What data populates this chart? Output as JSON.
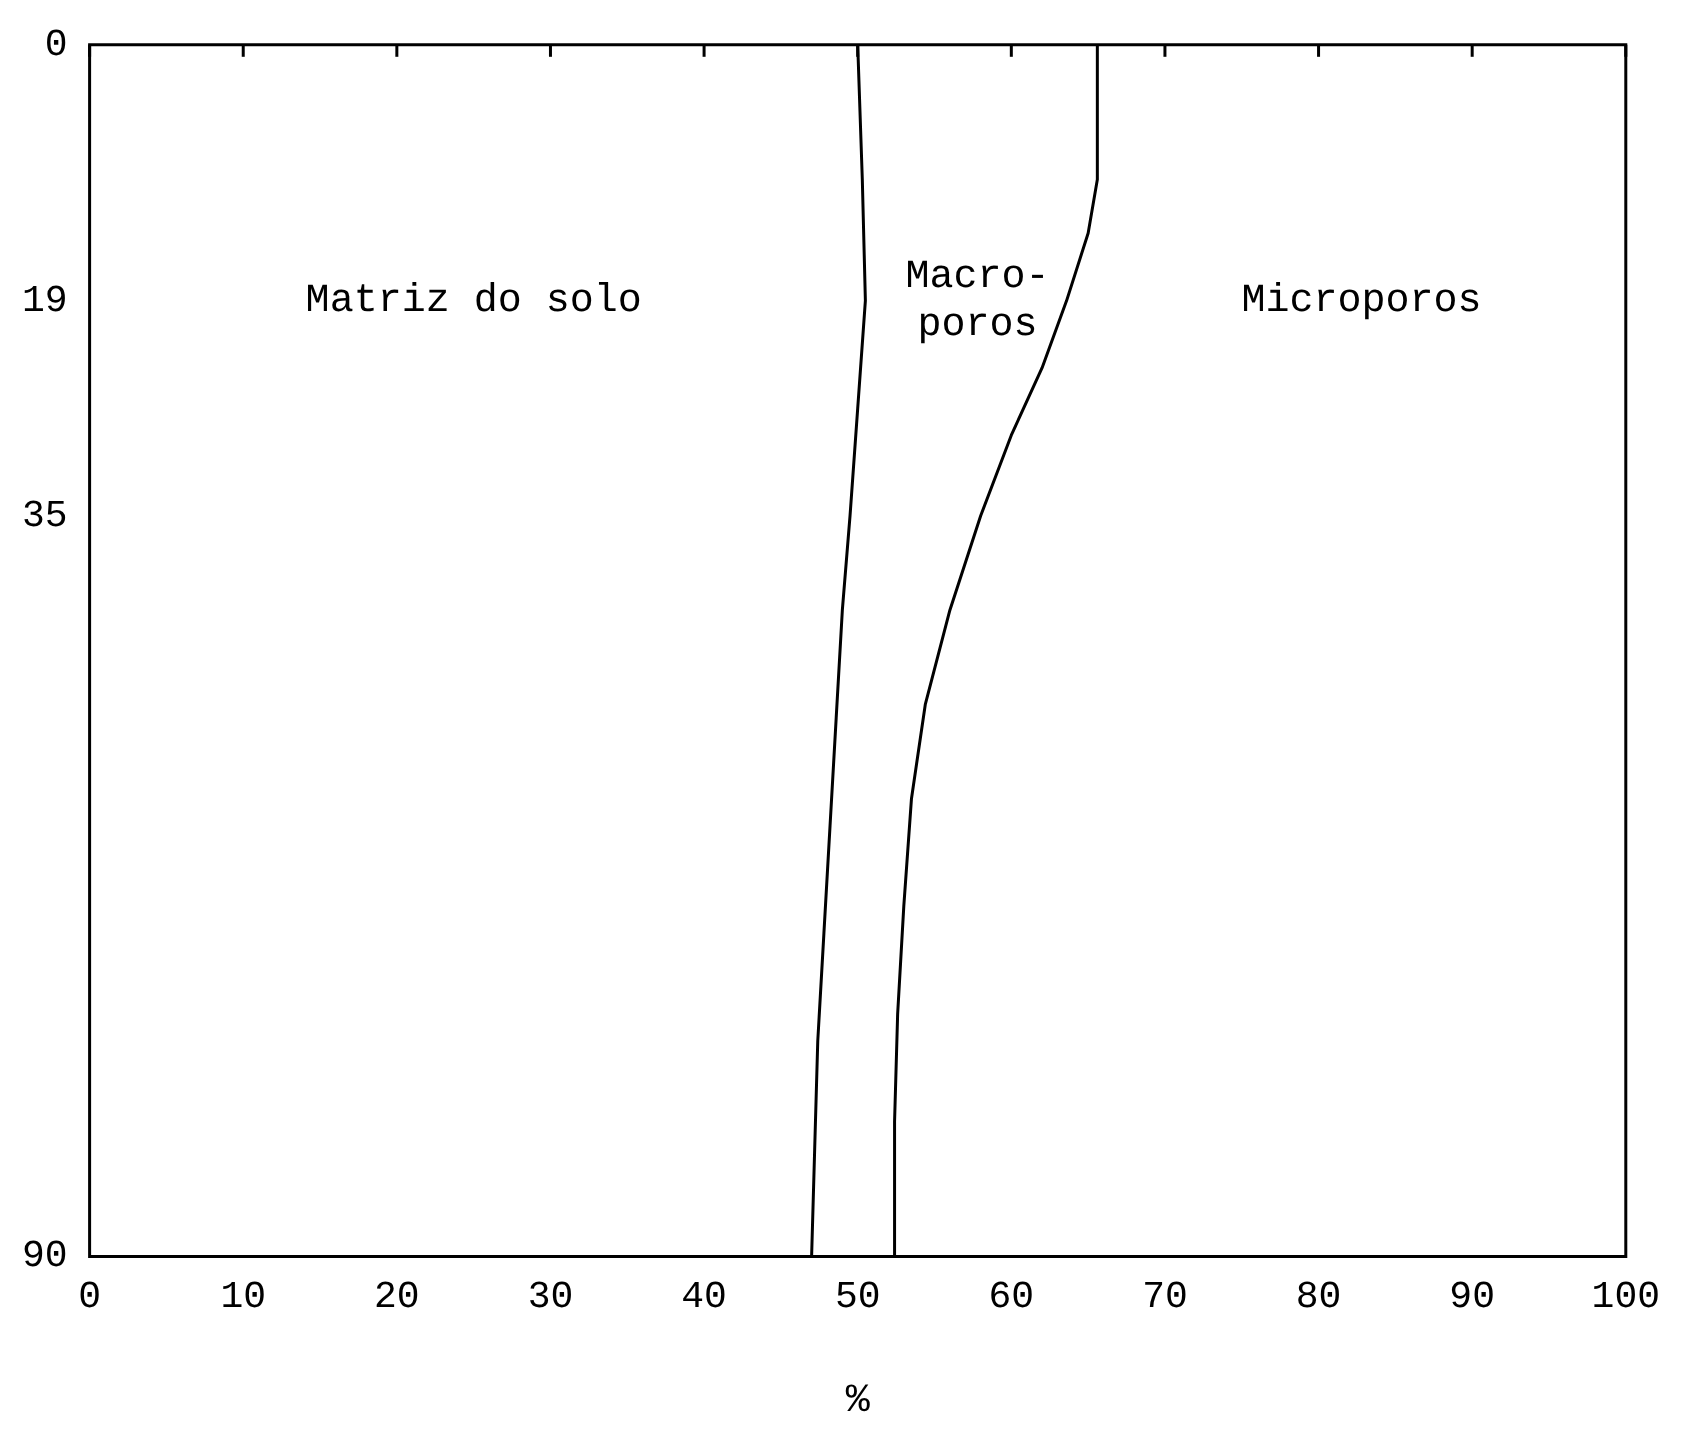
{
  "chart_data": {
    "type": "line",
    "xlabel": "%",
    "xlim": [
      0,
      100
    ],
    "xticks": [
      0,
      10,
      20,
      30,
      40,
      50,
      60,
      70,
      80,
      90,
      100
    ],
    "ylim": [
      90,
      0
    ],
    "yticks": [
      0,
      19,
      35,
      90
    ],
    "grid": false,
    "legend": false,
    "marker": "none",
    "line_style": "solid",
    "series": [
      {
        "color": "#000000",
        "x": [
          50,
          50.3,
          50.5,
          50,
          49.5,
          49,
          48.6,
          48.2,
          47.8,
          47.4,
          47.2,
          47
        ],
        "values": [
          0,
          10,
          19,
          27,
          35,
          42,
          50,
          58,
          66,
          74,
          82,
          90
        ]
      },
      {
        "color": "#000000",
        "x": [
          65.6,
          65.6,
          65,
          63.6,
          62,
          60,
          58,
          56,
          54.4,
          53.5,
          53,
          52.6,
          52.4,
          52.4
        ],
        "values": [
          0,
          10,
          14,
          19,
          24,
          29,
          35,
          42,
          49,
          56,
          64,
          72,
          80,
          90
        ]
      }
    ],
    "annotations": [
      "Matriz do solo",
      "Macro-\nporos",
      "Microporos"
    ]
  }
}
